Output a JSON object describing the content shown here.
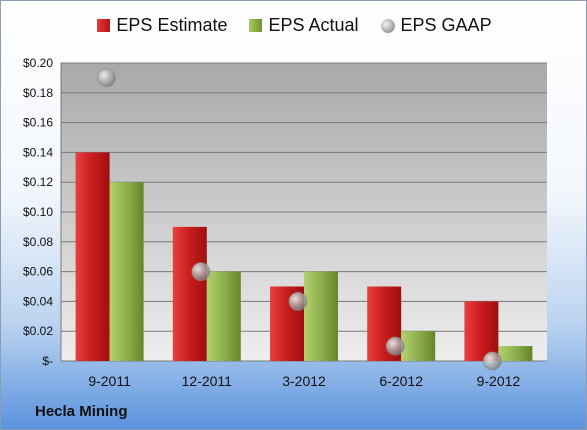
{
  "chart_data": {
    "type": "bar",
    "title": "",
    "xlabel": "",
    "ylabel": "",
    "categories": [
      "9-2011",
      "12-2011",
      "3-2012",
      "6-2012",
      "9-2012"
    ],
    "series": [
      {
        "name": "EPS Estimate",
        "kind": "bar",
        "color": "#c91f1f",
        "values": [
          0.14,
          0.09,
          0.05,
          0.05,
          0.04
        ]
      },
      {
        "name": "EPS Actual",
        "kind": "bar",
        "color": "#8ab04a",
        "values": [
          0.12,
          0.06,
          0.06,
          0.02,
          0.01
        ]
      },
      {
        "name": "EPS GAAP",
        "kind": "marker",
        "color": "#a8a8a8",
        "values": [
          0.19,
          0.06,
          0.04,
          0.01,
          0.0
        ]
      }
    ],
    "ylim": [
      0,
      0.2
    ],
    "yticks": [
      0,
      0.02,
      0.04,
      0.06,
      0.08,
      0.1,
      0.12,
      0.14,
      0.16,
      0.18,
      0.2
    ],
    "ytick_labels": [
      "$-",
      "$0.02",
      "$0.04",
      "$0.06",
      "$0.08",
      "$0.10",
      "$0.12",
      "$0.14",
      "$0.16",
      "$0.18",
      "$0.20"
    ],
    "grid": true,
    "legend": "top"
  },
  "legend": {
    "estimate": "EPS Estimate",
    "actual": "EPS Actual",
    "gaap": "EPS GAAP"
  },
  "company_label": "Hecla Mining"
}
